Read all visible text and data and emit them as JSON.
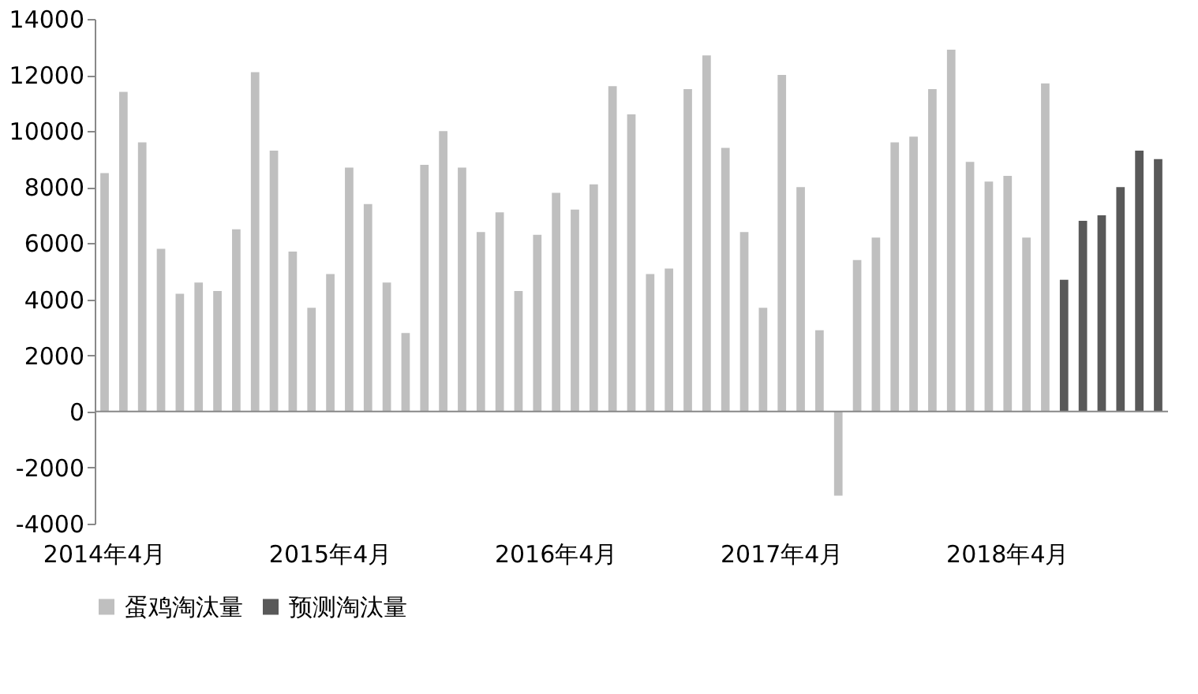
{
  "chart_data": {
    "type": "bar",
    "categories": [
      "2014年4月",
      null,
      null,
      null,
      null,
      null,
      null,
      null,
      null,
      null,
      null,
      null,
      "2015年4月",
      null,
      null,
      null,
      null,
      null,
      null,
      null,
      null,
      null,
      null,
      null,
      "2016年4月",
      null,
      null,
      null,
      null,
      null,
      null,
      null,
      null,
      null,
      null,
      null,
      "2017年4月",
      null,
      null,
      null,
      null,
      null,
      null,
      null,
      null,
      null,
      null,
      null,
      "2018年4月",
      null,
      null,
      null,
      null,
      null,
      null,
      null,
      null
    ],
    "series": [
      {
        "name": "蛋鸡淘汰量",
        "color": "#bfbfbf",
        "values": [
          8500,
          11400,
          9600,
          5800,
          4200,
          4600,
          4300,
          6500,
          12100,
          9300,
          5700,
          3700,
          4900,
          8700,
          7400,
          4600,
          2800,
          8800,
          10000,
          8700,
          6400,
          7100,
          4300,
          6300,
          7800,
          7200,
          8100,
          11600,
          10600,
          4900,
          5100,
          11500,
          12700,
          9400,
          6400,
          3700,
          12000,
          8000,
          2900,
          -3000,
          5400,
          6200,
          9600,
          9800,
          11500,
          12900,
          8900,
          8200,
          8400,
          6200,
          11700,
          null,
          null,
          null,
          null,
          null,
          null
        ]
      },
      {
        "name": "预测淘汰量",
        "color": "#595959",
        "values": [
          null,
          null,
          null,
          null,
          null,
          null,
          null,
          null,
          null,
          null,
          null,
          null,
          null,
          null,
          null,
          null,
          null,
          null,
          null,
          null,
          null,
          null,
          null,
          null,
          null,
          null,
          null,
          null,
          null,
          null,
          null,
          null,
          null,
          null,
          null,
          null,
          null,
          null,
          null,
          null,
          null,
          null,
          null,
          null,
          null,
          null,
          null,
          null,
          null,
          null,
          null,
          4700,
          6800,
          7000,
          8000,
          9300,
          9000
        ]
      }
    ],
    "ylim": [
      -4000,
      14000
    ],
    "yticks": [
      -4000,
      -2000,
      0,
      2000,
      4000,
      6000,
      8000,
      10000,
      12000,
      14000
    ],
    "legend": "bottom"
  }
}
